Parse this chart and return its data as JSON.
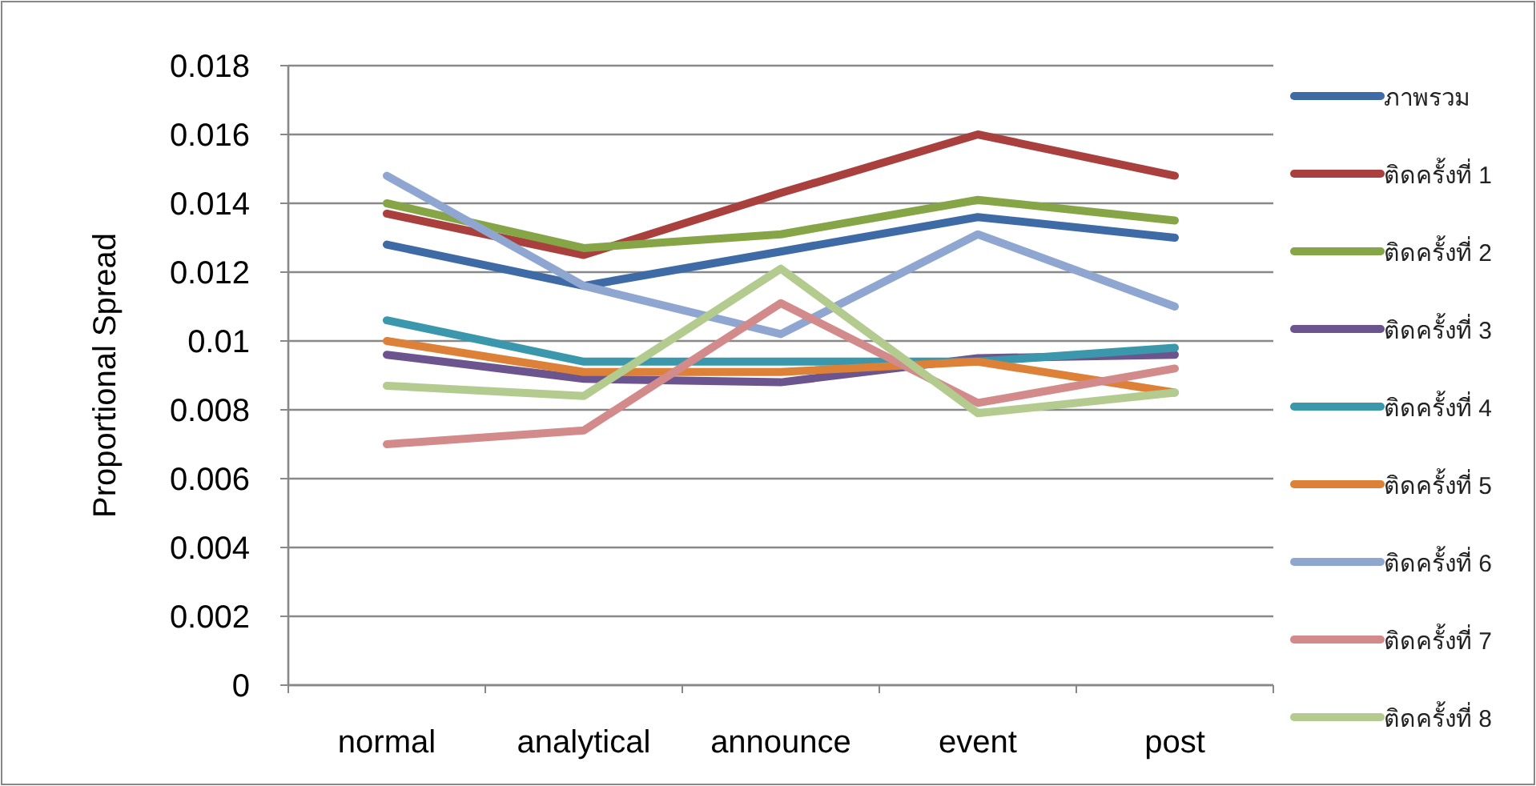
{
  "chart_data": {
    "type": "line",
    "ylabel": "Proportional Spread",
    "categories": [
      "normal",
      "analytical",
      "announce",
      "event",
      "post"
    ],
    "ylim": [
      0,
      0.018
    ],
    "yticks": [
      {
        "value": 0,
        "label": "0"
      },
      {
        "value": 0.002,
        "label": "0.002"
      },
      {
        "value": 0.004,
        "label": "0.004"
      },
      {
        "value": 0.006,
        "label": "0.006"
      },
      {
        "value": 0.008,
        "label": "0.008"
      },
      {
        "value": 0.01,
        "label": "0.01"
      },
      {
        "value": 0.012,
        "label": "0.012"
      },
      {
        "value": 0.014,
        "label": "0.014"
      },
      {
        "value": 0.016,
        "label": "0.016"
      },
      {
        "value": 0.018,
        "label": "0.018"
      }
    ],
    "grid": "y",
    "legend": "right",
    "marker": "none",
    "line_style": "solid",
    "series": [
      {
        "name": "ภาพรวม",
        "color": "#3e6aa6",
        "values": [
          0.0128,
          0.0116,
          0.0126,
          0.0136,
          0.013
        ]
      },
      {
        "name": "ติดครั้งที่ 1",
        "color": "#a9403d",
        "values": [
          0.0137,
          0.0125,
          0.0143,
          0.016,
          0.0148
        ]
      },
      {
        "name": "ติดครั้งที่ 2",
        "color": "#85a546",
        "values": [
          0.014,
          0.0127,
          0.0131,
          0.0141,
          0.0135
        ]
      },
      {
        "name": "ติดครั้งที่ 3",
        "color": "#6c548f",
        "values": [
          0.0096,
          0.0089,
          0.0088,
          0.0095,
          0.0096
        ]
      },
      {
        "name": "ติดครั้งที่ 4",
        "color": "#3b97ab",
        "values": [
          0.0106,
          0.0094,
          0.0094,
          0.0094,
          0.0098
        ]
      },
      {
        "name": "ติดครั้งที่ 5",
        "color": "#dc8137",
        "values": [
          0.01,
          0.0091,
          0.0091,
          0.0094,
          0.0085
        ]
      },
      {
        "name": "ติดครั้งที่ 6",
        "color": "#8ea6d0",
        "values": [
          0.0148,
          0.0116,
          0.0102,
          0.0131,
          0.011
        ]
      },
      {
        "name": "ติดครั้งที่ 7",
        "color": "#d28b8a",
        "values": [
          0.007,
          0.0074,
          0.0111,
          0.0082,
          0.0092
        ]
      },
      {
        "name": "ติดครั้งที่ 8",
        "color": "#b3cb8f",
        "values": [
          0.0087,
          0.0084,
          0.0121,
          0.0079,
          0.0085
        ]
      }
    ]
  }
}
